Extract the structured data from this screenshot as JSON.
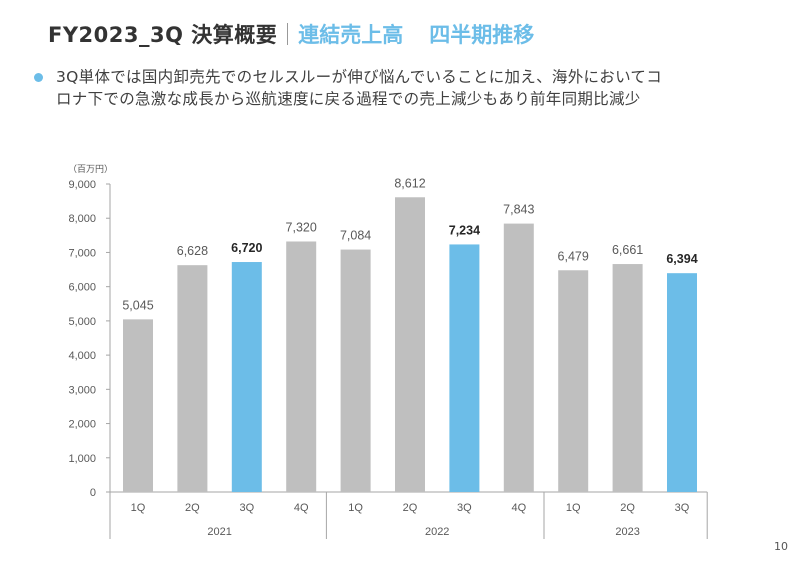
{
  "header": {
    "title_main": "FY2023_3Q 決算概要",
    "title_sub": "連結売上高",
    "title_sub2": "四半期推移"
  },
  "bullet": {
    "line1": "3Q単体では国内卸売先でのセルスルーが伸び悩んでいることに加え、海外においてコ",
    "line2": "ロナ下での急激な成長から巡航速度に戻る過程での売上減少もあり前年同期比減少"
  },
  "page_number": "10",
  "colors": {
    "accent": "#6cbde8",
    "bar": "#bfbfbf",
    "highlight": "#6cbde8"
  },
  "chart_data": {
    "type": "bar",
    "unit_label": "（百万円）",
    "ylim": [
      0,
      9000
    ],
    "yticks": [
      "0",
      "1,000",
      "2,000",
      "3,000",
      "4,000",
      "5,000",
      "6,000",
      "7,000",
      "8,000",
      "9,000"
    ],
    "ytick_values": [
      0,
      1000,
      2000,
      3000,
      4000,
      5000,
      6000,
      7000,
      8000,
      9000
    ],
    "categories": [
      "1Q",
      "2Q",
      "3Q",
      "4Q",
      "1Q",
      "2Q",
      "3Q",
      "4Q",
      "1Q",
      "2Q",
      "3Q"
    ],
    "groups": [
      {
        "label": "2021",
        "count": 4
      },
      {
        "label": "2022",
        "count": 4
      },
      {
        "label": "2023",
        "count": 3
      }
    ],
    "values": [
      5045,
      6628,
      6720,
      7320,
      7084,
      8612,
      7234,
      7843,
      6479,
      6661,
      6394
    ],
    "labels": [
      "5,045",
      "6,628",
      "6,720",
      "7,320",
      "7,084",
      "8,612",
      "7,234",
      "7,843",
      "6,479",
      "6,661",
      "6,394"
    ],
    "highlight": [
      false,
      false,
      true,
      false,
      false,
      false,
      true,
      false,
      false,
      false,
      true
    ],
    "grid": false
  }
}
